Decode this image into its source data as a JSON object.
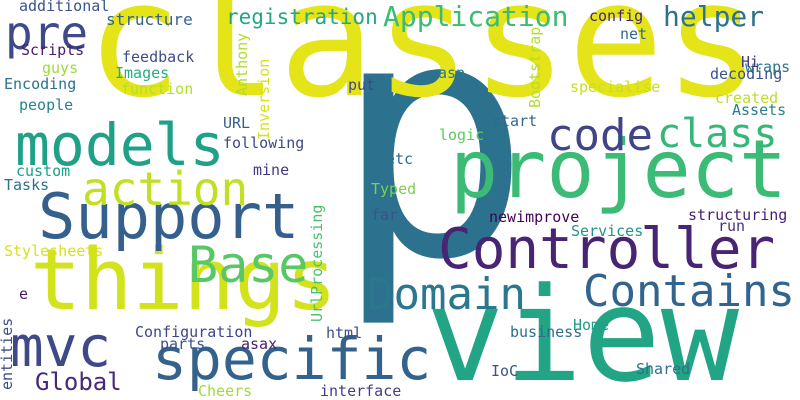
{
  "words": [
    {
      "text": "p",
      "color": "#2c728e"
    },
    {
      "text": "classes",
      "color": "#e4e419"
    },
    {
      "text": "view",
      "color": "#21a585"
    },
    {
      "text": "project",
      "color": "#3bbb75"
    },
    {
      "text": "Controller",
      "color": "#482475"
    },
    {
      "text": "things",
      "color": "#d2e21b"
    },
    {
      "text": "Support",
      "color": "#355f8d"
    },
    {
      "text": "models",
      "color": "#1fa188"
    },
    {
      "text": "specific",
      "color": "#33628d"
    },
    {
      "text": "Domain",
      "color": "#2a778e"
    },
    {
      "text": "Contains",
      "color": "#32648e"
    },
    {
      "text": "mvc",
      "color": "#3f4889"
    },
    {
      "text": "pre",
      "color": "#3e4a89"
    },
    {
      "text": "action",
      "color": "#c2df23"
    },
    {
      "text": "Base",
      "color": "#58c765"
    },
    {
      "text": "code",
      "color": "#414487"
    },
    {
      "text": "class",
      "color": "#35b779"
    },
    {
      "text": "Application",
      "color": "#3cbb75"
    },
    {
      "text": "helper",
      "color": "#2c728e"
    },
    {
      "text": "Global",
      "color": "#482878"
    },
    {
      "text": "registration",
      "color": "#22a884"
    },
    {
      "text": "structure",
      "color": "#33638d"
    },
    {
      "text": "config",
      "color": "#482475"
    },
    {
      "text": "net",
      "color": "#31688e"
    },
    {
      "text": "wraps",
      "color": "#2a768e"
    },
    {
      "text": "Hi",
      "color": "#443983"
    },
    {
      "text": "decoding",
      "color": "#3b528b"
    },
    {
      "text": "created",
      "color": "#bddf26"
    },
    {
      "text": "Assets",
      "color": "#277f8e"
    },
    {
      "text": "specialise",
      "color": "#c8e020"
    },
    {
      "text": "asp",
      "color": "#2a788e"
    },
    {
      "text": "put",
      "color": "#3f4788"
    },
    {
      "text": "start",
      "color": "#31688e"
    },
    {
      "text": "logic",
      "color": "#5ec962"
    },
    {
      "text": "etc",
      "color": "#2e6e8e"
    },
    {
      "text": "Typed",
      "color": "#7ad151"
    },
    {
      "text": "far",
      "color": "#3b528b"
    },
    {
      "text": "newimprove",
      "color": "#440154"
    },
    {
      "text": "structuring",
      "color": "#481f70"
    },
    {
      "text": "run",
      "color": "#46337e"
    },
    {
      "text": "Services",
      "color": "#1f968b"
    },
    {
      "text": "feedback",
      "color": "#3d4e8a"
    },
    {
      "text": "Images",
      "color": "#25ac82"
    },
    {
      "text": "function",
      "color": "#b5de2b"
    },
    {
      "text": "URL",
      "color": "#355f8d"
    },
    {
      "text": "following",
      "color": "#3e4989"
    },
    {
      "text": "mine",
      "color": "#453882"
    },
    {
      "text": "Scripts",
      "color": "#481b6d"
    },
    {
      "text": "guys",
      "color": "#a0da39"
    },
    {
      "text": "Encoding",
      "color": "#2c718e"
    },
    {
      "text": "people",
      "color": "#26818e"
    },
    {
      "text": "custom",
      "color": "#1f9e89"
    },
    {
      "text": "Tasks",
      "color": "#2d708e"
    },
    {
      "text": "additional",
      "color": "#3b528b"
    },
    {
      "text": "Stylesheets",
      "color": "#d8e219"
    },
    {
      "text": "e",
      "color": "#481668"
    },
    {
      "text": "Configuration",
      "color": "#3f4788"
    },
    {
      "text": "parts",
      "color": "#39558c"
    },
    {
      "text": "asax",
      "color": "#481f70"
    },
    {
      "text": "html",
      "color": "#3d4d8a"
    },
    {
      "text": "business",
      "color": "#2f6c8e"
    },
    {
      "text": "Home",
      "color": "#1f9e89"
    },
    {
      "text": "IoC",
      "color": "#3a538b"
    },
    {
      "text": "Shared",
      "color": "#2d718e"
    },
    {
      "text": "Cheers",
      "color": "#a2da37"
    },
    {
      "text": "interface",
      "color": "#433e85"
    },
    {
      "text": "entities",
      "color": "#3e4c8a"
    },
    {
      "text": "Anthony",
      "color": "#b0dd2f"
    },
    {
      "text": "Inversion",
      "color": "#d5e21a"
    },
    {
      "text": "Bootstrap",
      "color": "#b5de2b"
    },
    {
      "text": "UrlProcessing",
      "color": "#4ac16d"
    }
  ]
}
